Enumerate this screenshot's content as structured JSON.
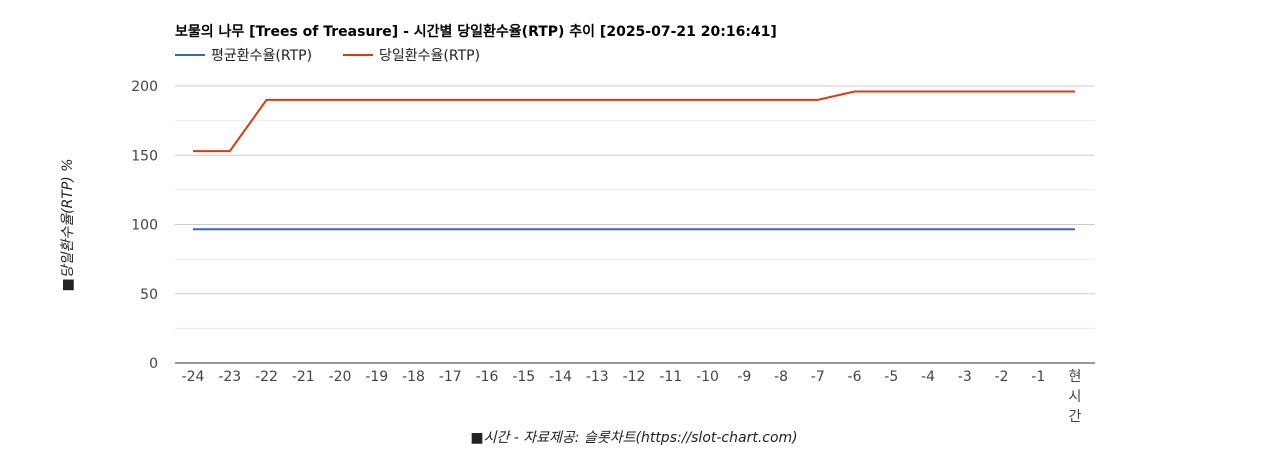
{
  "chart_data": {
    "type": "line",
    "title": "보물의 나무 [Trees of Treasure] - 시간별 당일환수율(RTP) 추이 [2025-07-21 20:16:41]",
    "xlabel": "■시간 - 자료제공: 슬롯차트(https://slot-chart.com)",
    "ylabel": "■당일환수율(RTP) %",
    "ylim": [
      0,
      200
    ],
    "yticks": [
      0,
      50,
      100,
      150,
      200
    ],
    "grid": true,
    "legend_position": "top-left",
    "categories": [
      "-24",
      "-23",
      "-22",
      "-21",
      "-20",
      "-19",
      "-18",
      "-17",
      "-16",
      "-15",
      "-14",
      "-13",
      "-12",
      "-11",
      "-10",
      "-9",
      "-8",
      "-7",
      "-6",
      "-5",
      "-4",
      "-3",
      "-2",
      "-1",
      "현시간"
    ],
    "series": [
      {
        "name": "평균환수율(RTP)",
        "color": "#3366cc",
        "values": [
          96.5,
          96.5,
          96.5,
          96.5,
          96.5,
          96.5,
          96.5,
          96.5,
          96.5,
          96.5,
          96.5,
          96.5,
          96.5,
          96.5,
          96.5,
          96.5,
          96.5,
          96.5,
          96.5,
          96.5,
          96.5,
          96.5,
          96.5,
          96.5,
          96.5
        ]
      },
      {
        "name": "당일환수율(RTP)",
        "color": "#dc3912",
        "values": [
          153,
          153,
          190,
          190,
          190,
          190,
          190,
          190,
          190,
          190,
          190,
          190,
          190,
          190,
          190,
          190,
          190,
          190,
          196,
          196,
          196,
          196,
          196,
          196,
          196
        ]
      }
    ]
  }
}
